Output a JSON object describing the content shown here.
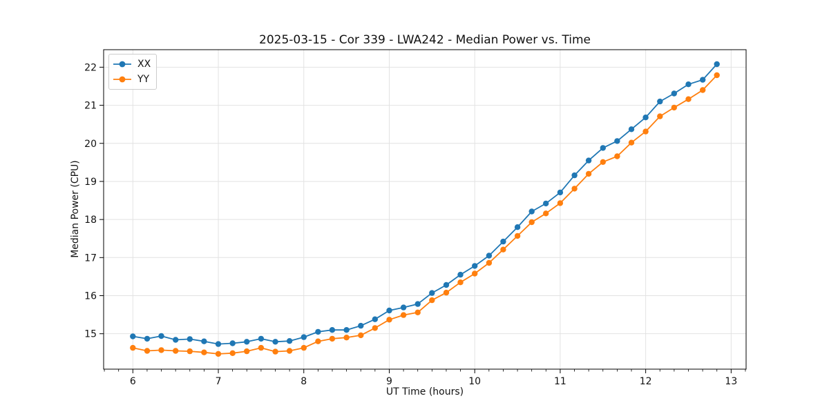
{
  "chart_data": {
    "type": "line",
    "title": "2025-03-15 - Cor 339 - LWA242 - Median Power vs. Time",
    "xlabel": "UT Time (hours)",
    "ylabel": "Median Power (CPU)",
    "xlim": [
      5.658,
      13.175
    ],
    "ylim": [
      14.07,
      22.46
    ],
    "x_ticks": [
      6,
      7,
      8,
      9,
      10,
      11,
      12,
      13
    ],
    "y_ticks": [
      15,
      16,
      17,
      18,
      19,
      20,
      21,
      22
    ],
    "x_minor_tick_step_hours": 0.1667,
    "grid": true,
    "legend_position": "upper-left",
    "x": [
      6.0,
      6.167,
      6.333,
      6.5,
      6.667,
      6.833,
      7.0,
      7.167,
      7.333,
      7.5,
      7.667,
      7.833,
      8.0,
      8.167,
      8.333,
      8.5,
      8.667,
      8.833,
      9.0,
      9.167,
      9.333,
      9.5,
      9.667,
      9.833,
      10.0,
      10.167,
      10.333,
      10.5,
      10.667,
      10.833,
      11.0,
      11.167,
      11.333,
      11.5,
      11.667,
      11.833,
      12.0,
      12.167,
      12.333,
      12.5,
      12.667,
      12.833
    ],
    "series": [
      {
        "name": "XX",
        "color": "#1f77b4",
        "values": [
          14.93,
          14.87,
          14.94,
          14.84,
          14.86,
          14.8,
          14.73,
          14.75,
          14.79,
          14.87,
          14.79,
          14.81,
          14.91,
          15.05,
          15.1,
          15.1,
          15.21,
          15.38,
          15.61,
          15.69,
          15.78,
          16.07,
          16.28,
          16.55,
          16.78,
          17.05,
          17.42,
          17.8,
          18.21,
          18.42,
          18.71,
          19.16,
          19.55,
          19.88,
          20.06,
          20.37,
          20.68,
          21.1,
          21.31,
          21.55,
          21.67,
          22.08
        ]
      },
      {
        "name": "YY",
        "color": "#ff7f0e",
        "values": [
          14.63,
          14.55,
          14.57,
          14.55,
          14.54,
          14.51,
          14.47,
          14.49,
          14.54,
          14.63,
          14.53,
          14.55,
          14.63,
          14.8,
          14.87,
          14.9,
          14.96,
          15.15,
          15.37,
          15.49,
          15.56,
          15.88,
          16.08,
          16.35,
          16.58,
          16.86,
          17.21,
          17.57,
          17.93,
          18.16,
          18.43,
          18.81,
          19.2,
          19.51,
          19.66,
          20.02,
          20.31,
          20.71,
          20.94,
          21.16,
          21.4,
          21.79
        ]
      }
    ]
  }
}
